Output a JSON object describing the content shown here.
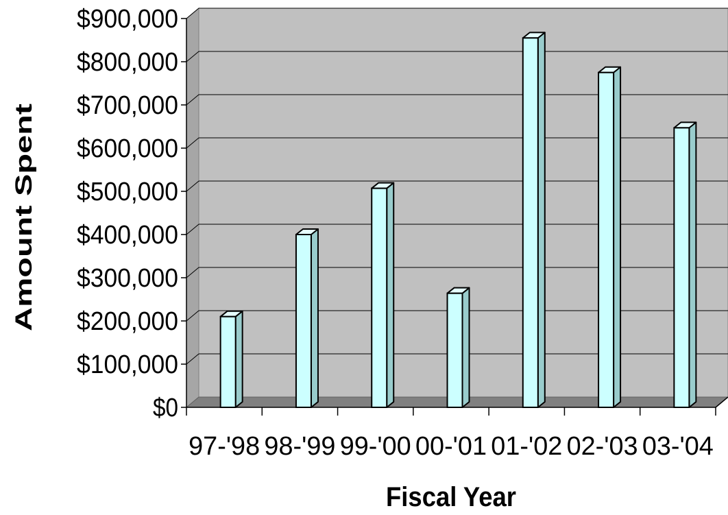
{
  "chart_data": {
    "type": "bar",
    "title": "",
    "xlabel": "Fiscal Year",
    "ylabel": "Amount Spent",
    "categories": [
      "97-'98",
      "98-'99",
      "99-'00",
      "00-'01",
      "01-'02",
      "02-'03",
      "03-'04"
    ],
    "values": [
      210000,
      400000,
      507000,
      264000,
      855000,
      775000,
      647000
    ],
    "ylim": [
      0,
      900000
    ],
    "yticks": [
      "$0",
      "$100,000",
      "$200,000",
      "$300,000",
      "$400,000",
      "$500,000",
      "$600,000",
      "$700,000",
      "$800,000",
      "$900,000"
    ],
    "grid": true,
    "legend": "none",
    "colors": {
      "bar_front": "#ccffff",
      "bar_side": "#99cccc",
      "bar_top": "#e6ffff",
      "plot_wall": "#c0c0c0",
      "plot_floor": "#808080",
      "gridline": "#000000"
    }
  }
}
